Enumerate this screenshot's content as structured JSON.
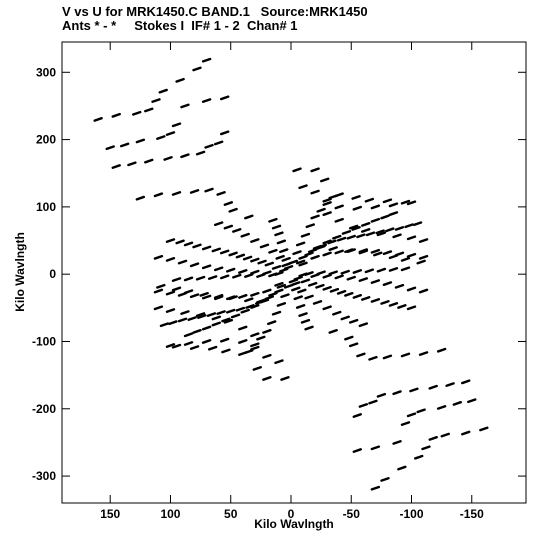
{
  "header": {
    "line1": "V vs U for MRK1450.C BAND.1   Source:MRK1450",
    "line2": "Ants * - *     Stokes I  IF# 1 - 2  Chan# 1"
  },
  "chart_data": {
    "type": "scatter",
    "title": "V vs U for MRK1450.C BAND.1   Source:MRK1450",
    "subtitle": "Ants * - *     Stokes I  IF# 1 - 2  Chan# 1",
    "xlabel": "Kilo Wavlngth",
    "ylabel": "Kilo Wavlngth",
    "xlim": [
      190,
      -195
    ],
    "ylim": [
      -340,
      345
    ],
    "x_ticks": [
      150,
      100,
      50,
      0,
      -50,
      -100,
      -150
    ],
    "x_tick_labels": [
      "150",
      "100",
      "50",
      "0",
      "-50",
      "-100",
      "-150"
    ],
    "y_ticks": [
      300,
      200,
      100,
      0,
      -100,
      -200,
      -300
    ],
    "y_tick_labels": [
      "300",
      "200",
      "100",
      "0",
      "-100",
      "-200",
      "-300"
    ],
    "grid": false,
    "marker_color": "#000000",
    "note": "uv-coverage: each visibility plotted with its conjugate (-u,-v)",
    "series": [
      {
        "points": [
          [
            160,
            230
          ],
          [
            145,
            236
          ],
          [
            128,
            239
          ],
          [
            118,
            244
          ],
          [
            112,
            258
          ],
          [
            106,
            272
          ],
          [
            92,
            288
          ],
          [
            78,
            305
          ],
          [
            70,
            318
          ],
          [
            150,
            188
          ],
          [
            138,
            192
          ],
          [
            125,
            198
          ],
          [
            108,
            203
          ],
          [
            100,
            209
          ],
          [
            95,
            222
          ],
          [
            88,
            250
          ],
          [
            70,
            258
          ],
          [
            55,
            262
          ],
          [
            145,
            160
          ],
          [
            132,
            164
          ],
          [
            118,
            168
          ],
          [
            102,
            172
          ],
          [
            88,
            176
          ],
          [
            75,
            180
          ],
          [
            68,
            190
          ],
          [
            60,
            195
          ],
          [
            55,
            210
          ],
          [
            125,
            113
          ],
          [
            110,
            118
          ],
          [
            95,
            120
          ],
          [
            80,
            123
          ],
          [
            68,
            125
          ],
          [
            58,
            120
          ],
          [
            52,
            105
          ],
          [
            48,
            95
          ],
          [
            35,
            85
          ],
          [
            100,
            50
          ],
          [
            92,
            48
          ],
          [
            85,
            45
          ],
          [
            78,
            42
          ],
          [
            70,
            39
          ],
          [
            62,
            36
          ],
          [
            55,
            33
          ],
          [
            48,
            30
          ],
          [
            42,
            27
          ],
          [
            36,
            24
          ],
          [
            30,
            21
          ],
          [
            24,
            18
          ],
          [
            18,
            15
          ],
          [
            12,
            10
          ],
          [
            6,
            6
          ],
          [
            60,
            75
          ],
          [
            52,
            70
          ],
          [
            45,
            65
          ],
          [
            38,
            58
          ],
          [
            30,
            50
          ],
          [
            22,
            42
          ],
          [
            15,
            34
          ],
          [
            9,
            25
          ],
          [
            4,
            14
          ],
          [
            15,
            80
          ],
          [
            12,
            70
          ],
          [
            10,
            60
          ],
          [
            8,
            48
          ],
          [
            6,
            35
          ],
          [
            4,
            22
          ],
          [
            2,
            10
          ],
          [
            -5,
            155
          ],
          [
            -10,
            130
          ],
          [
            -20,
            122
          ],
          [
            -30,
            110
          ],
          [
            -40,
            100
          ],
          [
            -55,
            98
          ],
          [
            -70,
            100
          ],
          [
            -85,
            103
          ],
          [
            -100,
            106
          ],
          [
            110,
            25
          ],
          [
            100,
            22
          ],
          [
            90,
            18
          ],
          [
            80,
            14
          ],
          [
            70,
            11
          ],
          [
            60,
            8
          ],
          [
            50,
            6
          ],
          [
            40,
            4
          ],
          [
            30,
            3
          ],
          [
            20,
            2
          ],
          [
            10,
            1
          ],
          [
            95,
            -8
          ],
          [
            85,
            -7
          ],
          [
            75,
            -6
          ],
          [
            65,
            -5
          ],
          [
            55,
            -4
          ],
          [
            45,
            -3
          ],
          [
            35,
            -2
          ],
          [
            25,
            -2
          ],
          [
            15,
            -1
          ],
          [
            110,
            -25
          ],
          [
            100,
            -28
          ],
          [
            90,
            -30
          ],
          [
            80,
            -32
          ],
          [
            70,
            -34
          ],
          [
            60,
            -35
          ],
          [
            50,
            -35
          ],
          [
            40,
            -33
          ],
          [
            30,
            -30
          ],
          [
            20,
            -25
          ],
          [
            10,
            -15
          ],
          [
            105,
            -75
          ],
          [
            98,
            -72
          ],
          [
            90,
            -68
          ],
          [
            82,
            -66
          ],
          [
            74,
            -63
          ],
          [
            66,
            -60
          ],
          [
            58,
            -57
          ],
          [
            50,
            -55
          ],
          [
            42,
            -52
          ],
          [
            34,
            -48
          ],
          [
            26,
            -42
          ],
          [
            18,
            -35
          ],
          [
            10,
            -25
          ],
          [
            85,
            -90
          ],
          [
            78,
            -85
          ],
          [
            70,
            -80
          ],
          [
            62,
            -74
          ],
          [
            54,
            -68
          ],
          [
            46,
            -62
          ],
          [
            38,
            -55
          ],
          [
            30,
            -48
          ],
          [
            22,
            -40
          ],
          [
            15,
            -30
          ],
          [
            8,
            -18
          ],
          [
            35,
            -115
          ],
          [
            30,
            -105
          ],
          [
            25,
            -95
          ],
          [
            20,
            -85
          ],
          [
            16,
            -72
          ],
          [
            12,
            -58
          ],
          [
            8,
            -45
          ],
          [
            5,
            -32
          ],
          [
            2,
            -18
          ],
          [
            -20,
            155
          ],
          [
            -28,
            140
          ],
          [
            -40,
            118
          ],
          [
            -54,
            114
          ],
          [
            -65,
            110
          ],
          [
            -80,
            109
          ],
          [
            -95,
            107
          ],
          [
            -30,
            90
          ],
          [
            -40,
            80
          ],
          [
            -52,
            70
          ],
          [
            -62,
            65
          ],
          [
            -75,
            60
          ],
          [
            -88,
            57
          ],
          [
            -100,
            54
          ],
          [
            -110,
            50
          ],
          [
            -25,
            40
          ],
          [
            -35,
            38
          ],
          [
            -48,
            35
          ],
          [
            -60,
            33
          ],
          [
            -72,
            30
          ],
          [
            -85,
            26
          ],
          [
            -95,
            22
          ],
          [
            -108,
            18
          ]
        ]
      }
    ]
  }
}
